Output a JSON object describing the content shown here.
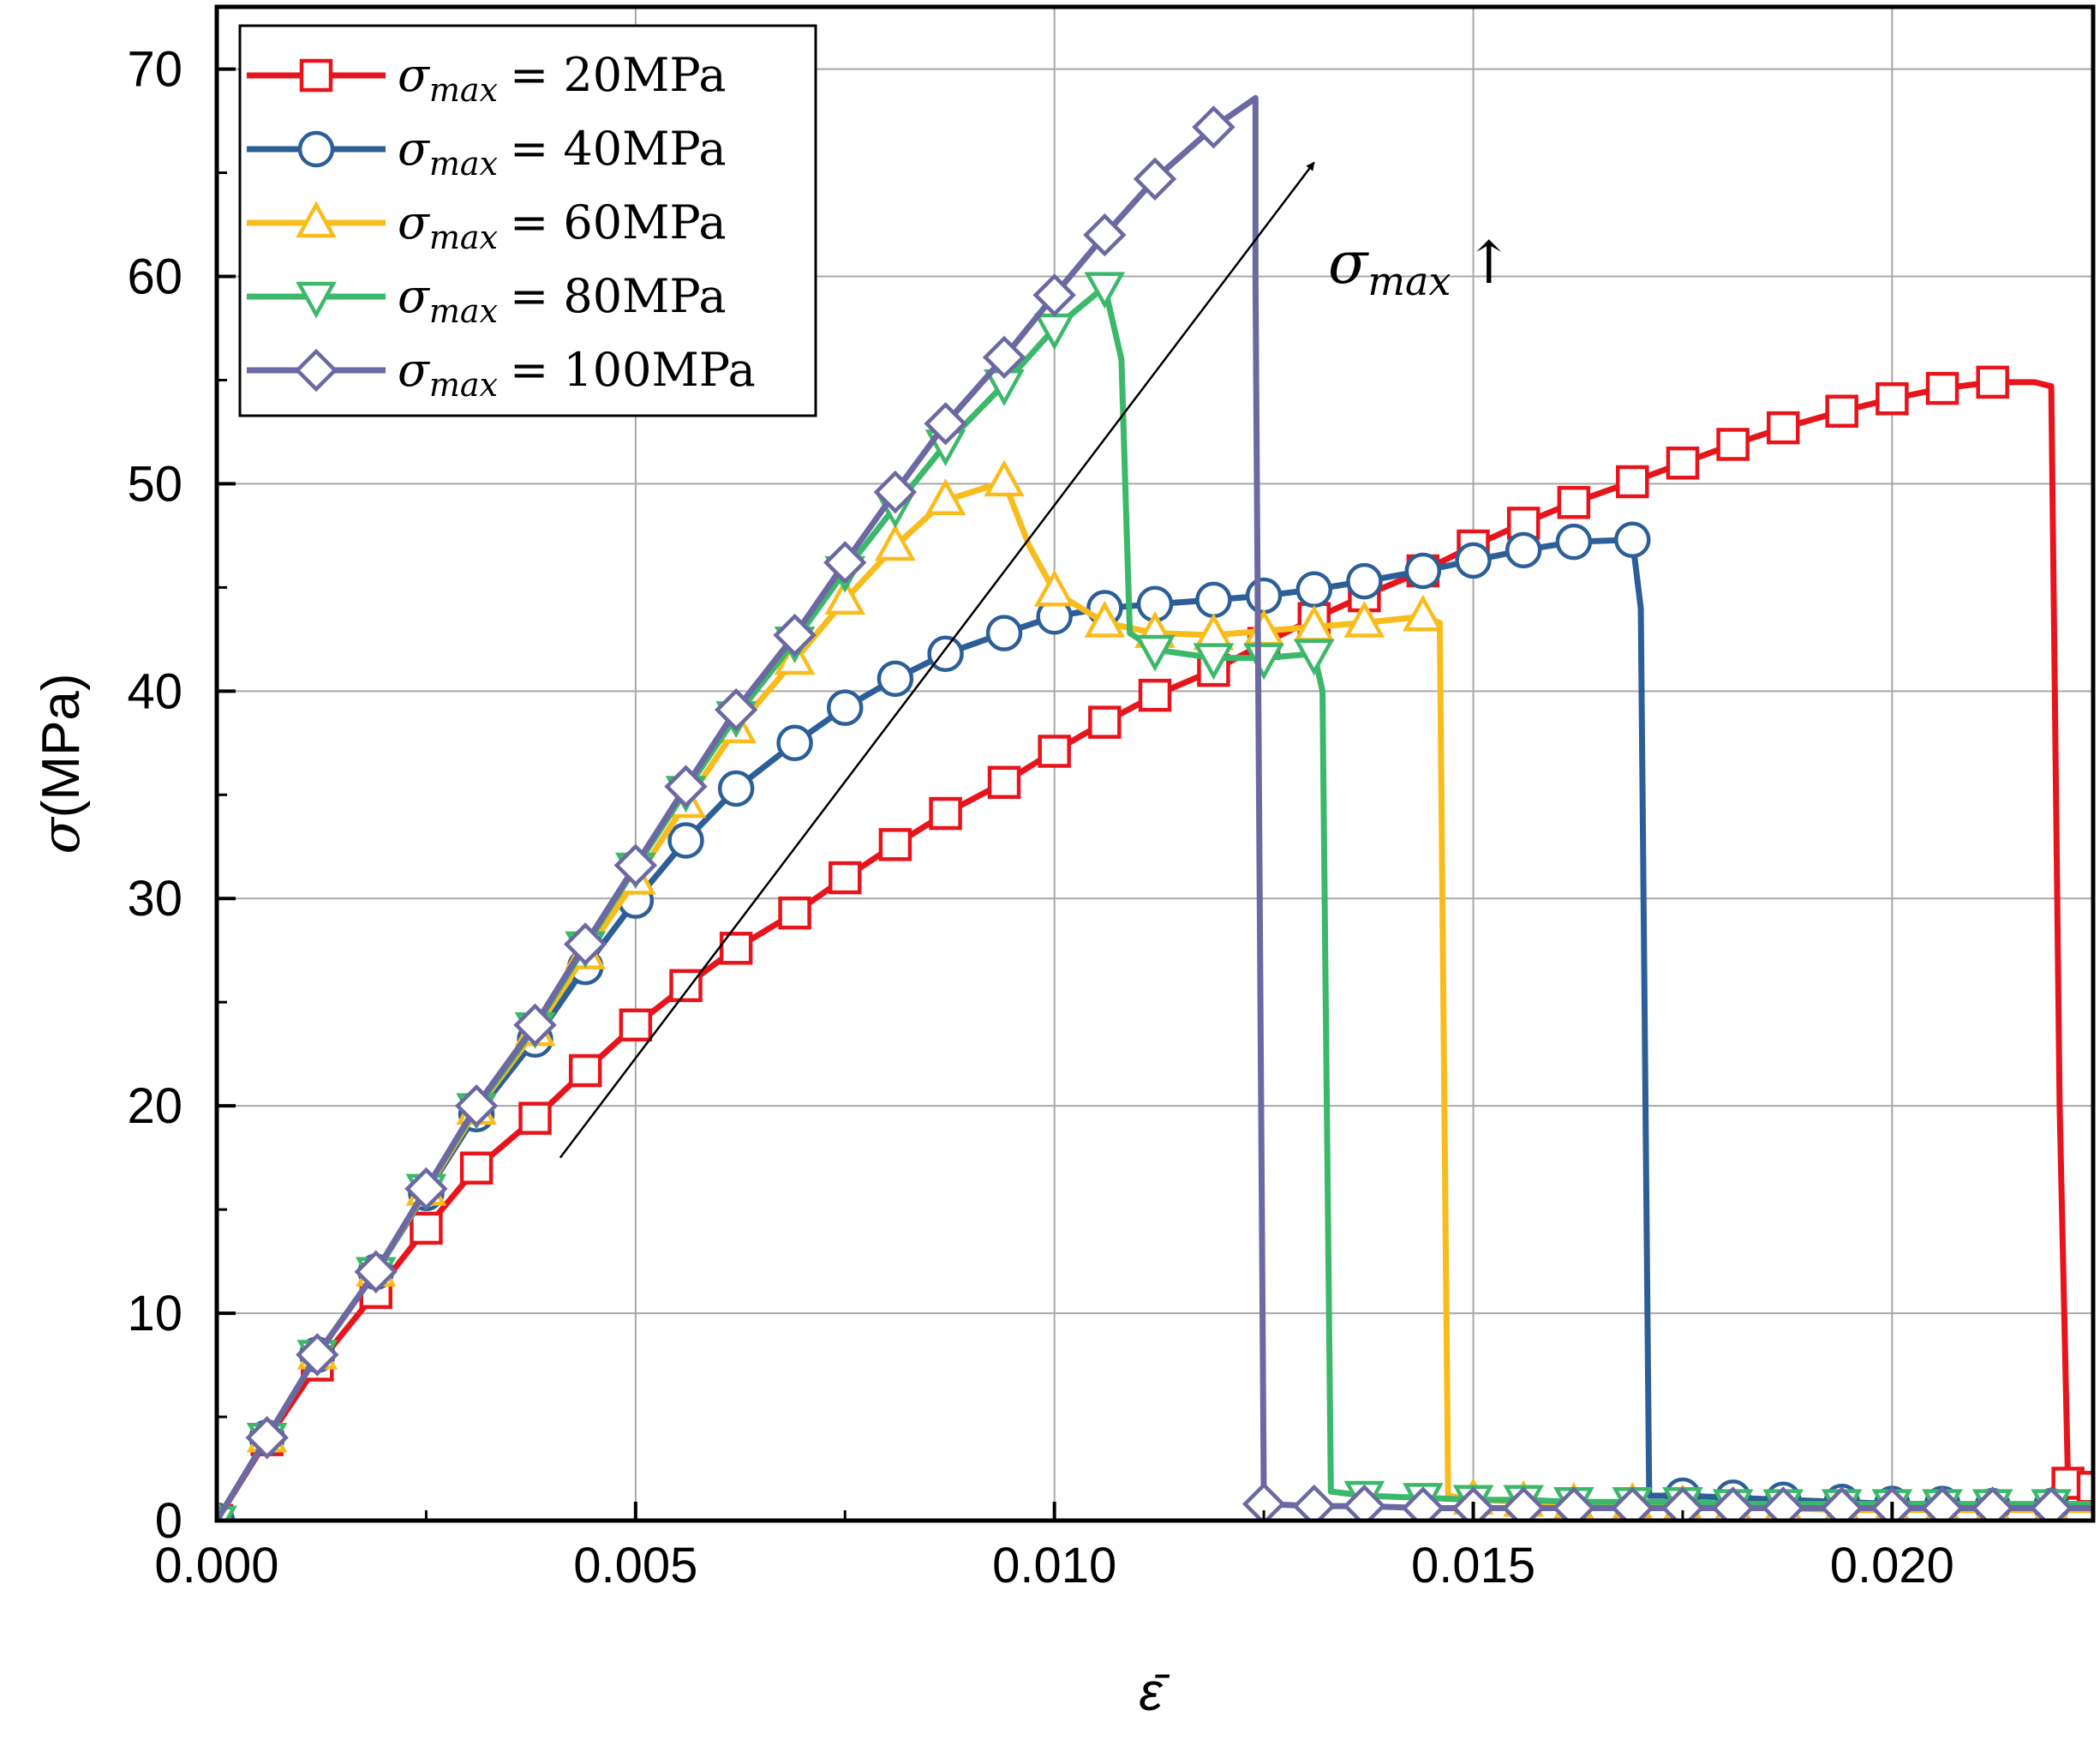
{
  "chart_data": {
    "type": "line",
    "title": "",
    "xlabel": "ε̄",
    "ylabel_symbol": "σ",
    "ylabel_unit": "(MPa)",
    "xlim": [
      0,
      0.0224
    ],
    "ylim": [
      0,
      73
    ],
    "grid": true,
    "legend_position": "top-left",
    "x_ticks": [
      0,
      0.005,
      0.01,
      0.015,
      0.02
    ],
    "x_tick_labels": [
      "0.000",
      "0.005",
      "0.010",
      "0.015",
      "0.020"
    ],
    "y_ticks": [
      0,
      10,
      20,
      30,
      40,
      50,
      60,
      70
    ],
    "y_tick_labels": [
      "0",
      "10",
      "20",
      "30",
      "40",
      "50",
      "60",
      "70"
    ],
    "annotation": {
      "symbol": "σ",
      "subscript": "max",
      "arrow_glyph": "↑",
      "from": [
        0.0041,
        17.5
      ],
      "to": [
        0.0131,
        65.5
      ]
    },
    "series": [
      {
        "name_symbol": "σ",
        "name_subscript": "max",
        "name_value": "= 20MPa",
        "color": "#e8141c",
        "marker": "square",
        "x": [
          0,
          0.0006,
          0.0012,
          0.0019,
          0.0025,
          0.0031,
          0.0038,
          0.0044,
          0.005,
          0.0056,
          0.0062,
          0.0069,
          0.0075,
          0.0081,
          0.0087,
          0.0094,
          0.01,
          0.0106,
          0.0112,
          0.0119,
          0.0125,
          0.0131,
          0.0137,
          0.0144,
          0.015,
          0.0156,
          0.0162,
          0.0169,
          0.0175,
          0.0181,
          0.0187,
          0.0194,
          0.02,
          0.0206,
          0.0212,
          0.0217,
          0.0219,
          0.022,
          0.0221,
          0.0224
        ],
        "y": [
          0,
          3.9,
          7.5,
          11.0,
          14.1,
          17.0,
          19.4,
          21.7,
          23.9,
          25.8,
          27.6,
          29.3,
          31.0,
          32.6,
          34.1,
          35.6,
          37.1,
          38.5,
          39.8,
          41.0,
          42.3,
          43.5,
          44.6,
          45.8,
          47.0,
          48.1,
          49.1,
          50.1,
          51.0,
          51.9,
          52.7,
          53.5,
          54.1,
          54.6,
          54.9,
          54.9,
          54.7,
          20,
          1.8,
          1.6
        ],
        "marker_index": [
          0,
          1,
          2,
          3,
          4,
          5,
          6,
          7,
          8,
          9,
          10,
          11,
          12,
          13,
          14,
          15,
          16,
          17,
          18,
          19,
          20,
          21,
          22,
          23,
          24,
          25,
          26,
          27,
          28,
          29,
          30,
          31,
          32,
          33,
          34,
          38,
          39
        ]
      },
      {
        "name_symbol": "σ",
        "name_subscript": "max",
        "name_value": "= 40MPa",
        "color": "#2c5f97",
        "marker": "circle",
        "x": [
          0,
          0.0006,
          0.0012,
          0.0019,
          0.0025,
          0.0031,
          0.0038,
          0.0044,
          0.005,
          0.0056,
          0.0062,
          0.0069,
          0.0075,
          0.0081,
          0.0087,
          0.0094,
          0.01,
          0.0106,
          0.0112,
          0.0119,
          0.0125,
          0.0131,
          0.0137,
          0.0144,
          0.015,
          0.0156,
          0.0162,
          0.0169,
          0.017,
          0.0171,
          0.0175,
          0.0181,
          0.0187,
          0.0194,
          0.02,
          0.0206,
          0.0212,
          0.0219,
          0.0224
        ],
        "y": [
          0,
          4.0,
          8.0,
          12.0,
          15.8,
          19.6,
          23.2,
          26.7,
          29.9,
          32.8,
          35.3,
          37.5,
          39.2,
          40.6,
          41.8,
          42.8,
          43.6,
          44.0,
          44.2,
          44.4,
          44.6,
          44.9,
          45.3,
          45.8,
          46.3,
          46.8,
          47.2,
          47.3,
          44.0,
          1.2,
          1.2,
          1.1,
          1.0,
          0.9,
          0.8,
          0.8,
          0.7,
          0.7,
          0.7
        ],
        "marker_index": [
          0,
          1,
          2,
          3,
          4,
          5,
          6,
          7,
          8,
          9,
          10,
          11,
          12,
          13,
          14,
          15,
          16,
          17,
          18,
          19,
          20,
          21,
          22,
          23,
          24,
          25,
          26,
          27,
          30,
          31,
          32,
          33,
          34,
          35,
          36,
          37
        ]
      },
      {
        "name_symbol": "σ",
        "name_subscript": "max",
        "name_value": "= 60MPa",
        "color": "#f8bc1c",
        "marker": "triangle-up",
        "x": [
          0,
          0.0006,
          0.0012,
          0.0019,
          0.0025,
          0.0031,
          0.0038,
          0.0044,
          0.005,
          0.0056,
          0.0062,
          0.0069,
          0.0075,
          0.0081,
          0.0087,
          0.0094,
          0.0097,
          0.01,
          0.0106,
          0.0112,
          0.0119,
          0.0125,
          0.0131,
          0.0137,
          0.0144,
          0.0146,
          0.0147,
          0.015,
          0.0156,
          0.0162,
          0.0169,
          0.0175,
          0.0181,
          0.0187,
          0.0194,
          0.02,
          0.0206,
          0.0212,
          0.0219,
          0.0224
        ],
        "y": [
          0,
          4.0,
          8.0,
          12.0,
          15.9,
          19.8,
          23.6,
          27.3,
          30.9,
          34.6,
          38.2,
          41.5,
          44.4,
          47.0,
          49.2,
          50.1,
          47.0,
          44.8,
          43.3,
          42.8,
          42.7,
          42.9,
          43.1,
          43.3,
          43.6,
          43.3,
          1.2,
          1.0,
          0.9,
          0.8,
          0.8,
          0.7,
          0.6,
          0.6,
          0.5,
          0.5,
          0.5,
          0.5,
          0.5,
          0.5
        ],
        "marker_index": [
          0,
          1,
          2,
          3,
          4,
          5,
          6,
          7,
          8,
          9,
          10,
          11,
          12,
          13,
          14,
          15,
          17,
          18,
          19,
          20,
          21,
          22,
          23,
          24,
          27,
          28,
          29,
          30,
          31,
          32,
          33,
          34,
          35,
          36,
          37,
          38
        ]
      },
      {
        "name_symbol": "σ",
        "name_subscript": "max",
        "name_value": "= 80MPa",
        "color": "#3cb86a",
        "marker": "triangle-down",
        "x": [
          0,
          0.0006,
          0.0012,
          0.0019,
          0.0025,
          0.0031,
          0.0038,
          0.0044,
          0.005,
          0.0056,
          0.0062,
          0.0069,
          0.0075,
          0.0081,
          0.0087,
          0.0094,
          0.01,
          0.0106,
          0.0108,
          0.0109,
          0.0112,
          0.0119,
          0.0125,
          0.0131,
          0.0132,
          0.0133,
          0.0137,
          0.0144,
          0.015,
          0.0156,
          0.0162,
          0.0169,
          0.0175,
          0.0181,
          0.0187,
          0.0194,
          0.02,
          0.0206,
          0.0212,
          0.0219,
          0.0224
        ],
        "y": [
          0,
          4.0,
          8.0,
          12.0,
          16.0,
          19.9,
          23.8,
          27.7,
          31.5,
          35.2,
          38.8,
          42.4,
          45.8,
          48.9,
          51.9,
          54.8,
          57.5,
          59.5,
          56.0,
          42.8,
          42.0,
          41.6,
          41.6,
          41.8,
          40.0,
          1.4,
          1.2,
          1.1,
          1.0,
          1.0,
          0.9,
          0.9,
          0.9,
          0.8,
          0.8,
          0.8,
          0.8,
          0.8,
          0.8,
          0.8,
          0.8
        ],
        "marker_index": [
          0,
          1,
          2,
          3,
          4,
          5,
          6,
          7,
          8,
          9,
          10,
          11,
          12,
          13,
          14,
          15,
          16,
          17,
          20,
          21,
          22,
          23,
          26,
          27,
          28,
          29,
          30,
          31,
          32,
          33,
          34,
          35,
          36,
          37,
          38,
          39
        ]
      },
      {
        "name_symbol": "σ",
        "name_subscript": "max",
        "name_value": "= 100MPa",
        "color": "#6b68a2",
        "marker": "diamond",
        "x": [
          0,
          0.0006,
          0.0012,
          0.0019,
          0.0025,
          0.0031,
          0.0038,
          0.0044,
          0.005,
          0.0056,
          0.0062,
          0.0069,
          0.0075,
          0.0081,
          0.0087,
          0.0094,
          0.01,
          0.0106,
          0.0112,
          0.0119,
          0.0124,
          0.0124,
          0.0125,
          0.0131,
          0.0137,
          0.0144,
          0.015,
          0.0156,
          0.0162,
          0.0169,
          0.0175,
          0.0181,
          0.0187,
          0.0194,
          0.02,
          0.0206,
          0.0212,
          0.0219,
          0.0224
        ],
        "y": [
          0,
          4.0,
          8.0,
          12.0,
          16.0,
          20.0,
          23.9,
          27.8,
          31.6,
          35.4,
          39.1,
          42.7,
          46.2,
          49.6,
          52.9,
          56.1,
          59.1,
          62.0,
          64.7,
          67.2,
          68.6,
          60.0,
          0.8,
          0.7,
          0.7,
          0.6,
          0.6,
          0.6,
          0.6,
          0.6,
          0.6,
          0.6,
          0.6,
          0.6,
          0.6,
          0.6,
          0.6,
          0.6,
          0.6
        ],
        "marker_index": [
          1,
          2,
          3,
          4,
          5,
          6,
          7,
          8,
          9,
          10,
          11,
          12,
          13,
          14,
          15,
          16,
          17,
          18,
          19,
          22,
          23,
          24,
          25,
          26,
          27,
          28,
          29,
          30,
          31,
          32,
          33,
          34,
          35,
          36,
          37
        ]
      }
    ]
  }
}
